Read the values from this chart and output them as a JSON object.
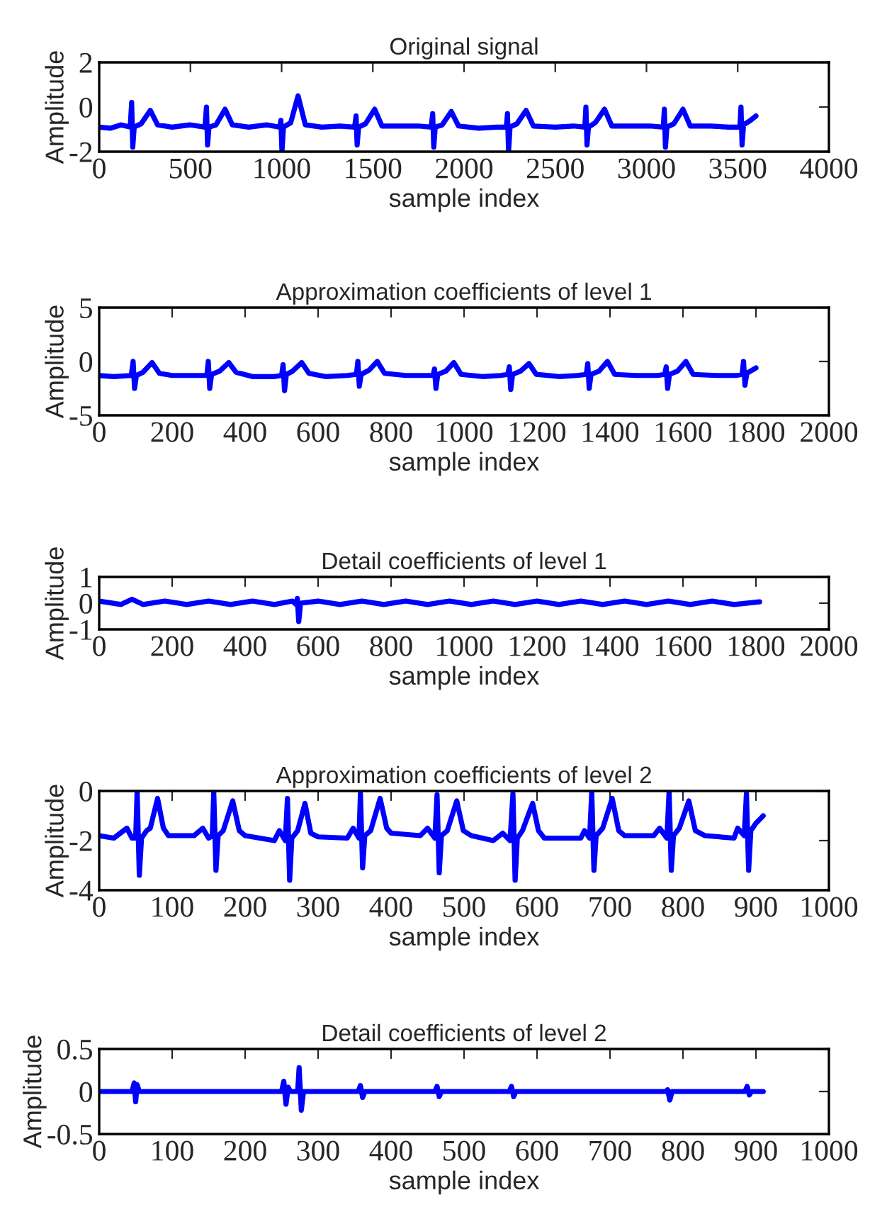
{
  "chart_data": [
    {
      "type": "line",
      "title": "Original signal",
      "xlabel": "sample index",
      "ylabel": "Amplitude",
      "xlim": [
        0,
        4000
      ],
      "ylim": [
        -2,
        2
      ],
      "xticks": [
        0,
        500,
        1000,
        1500,
        2000,
        2500,
        3000,
        3500,
        4000
      ],
      "yticks": [
        -2,
        0,
        2
      ],
      "series": [
        {
          "color": "#0000ff",
          "x": [
            0,
            60,
            120,
            170,
            178,
            184,
            192,
            230,
            280,
            320,
            400,
            500,
            580,
            588,
            594,
            602,
            640,
            690,
            730,
            820,
            920,
            990,
            996,
            1002,
            1010,
            1050,
            1090,
            1130,
            1220,
            1320,
            1400,
            1408,
            1414,
            1422,
            1460,
            1510,
            1550,
            1650,
            1750,
            1820,
            1828,
            1834,
            1842,
            1880,
            1930,
            1970,
            2080,
            2180,
            2232,
            2238,
            2244,
            2252,
            2290,
            2340,
            2380,
            2500,
            2600,
            2662,
            2668,
            2674,
            2682,
            2720,
            2770,
            2810,
            2920,
            3020,
            3092,
            3098,
            3104,
            3112,
            3150,
            3200,
            3240,
            3350,
            3450,
            3512,
            3518,
            3524,
            3532,
            3570,
            3600
          ],
          "values": [
            -0.9,
            -0.95,
            -0.8,
            -0.9,
            0.2,
            -1.8,
            -0.9,
            -0.75,
            -0.15,
            -0.8,
            -0.9,
            -0.8,
            -0.9,
            0.0,
            -1.7,
            -0.9,
            -0.8,
            -0.1,
            -0.8,
            -0.9,
            -0.8,
            -0.9,
            -0.6,
            -2.0,
            -0.9,
            -0.7,
            0.5,
            -0.8,
            -0.9,
            -0.85,
            -0.9,
            -0.4,
            -1.7,
            -0.9,
            -0.75,
            -0.1,
            -0.85,
            -0.85,
            -0.85,
            -0.9,
            -0.3,
            -1.8,
            -0.9,
            -0.8,
            -0.2,
            -0.85,
            -0.95,
            -0.9,
            -0.9,
            -0.3,
            -2.0,
            -0.9,
            -0.75,
            -0.15,
            -0.85,
            -0.9,
            -0.85,
            -0.9,
            0.0,
            -1.7,
            -0.9,
            -0.7,
            -0.1,
            -0.85,
            -0.85,
            -0.85,
            -0.9,
            -0.1,
            -1.8,
            -0.9,
            -0.75,
            -0.1,
            -0.85,
            -0.85,
            -0.9,
            -0.9,
            0.0,
            -1.7,
            -0.8,
            -0.6,
            -0.4
          ]
        }
      ]
    },
    {
      "type": "line",
      "title": "Approximation coefficients of level 1",
      "xlabel": "sample index",
      "ylabel": "Amplitude",
      "xlim": [
        0,
        2000
      ],
      "ylim": [
        -5,
        5
      ],
      "xticks": [
        0,
        200,
        400,
        600,
        800,
        1000,
        1200,
        1400,
        1600,
        1800,
        2000
      ],
      "yticks": [
        -5,
        0,
        5
      ],
      "series": [
        {
          "color": "#0000ff",
          "x": [
            0,
            40,
            88,
            93,
            97,
            102,
            120,
            145,
            165,
            200,
            250,
            295,
            299,
            303,
            308,
            330,
            355,
            375,
            420,
            480,
            500,
            504,
            508,
            513,
            530,
            555,
            575,
            620,
            680,
            705,
            709,
            713,
            718,
            740,
            762,
            782,
            840,
            880,
            915,
            919,
            923,
            928,
            950,
            972,
            992,
            1050,
            1100,
            1120,
            1124,
            1128,
            1133,
            1155,
            1178,
            1198,
            1260,
            1310,
            1335,
            1339,
            1343,
            1348,
            1370,
            1393,
            1413,
            1470,
            1530,
            1550,
            1554,
            1558,
            1563,
            1585,
            1608,
            1628,
            1690,
            1745,
            1762,
            1766,
            1770,
            1775,
            1800
          ],
          "values": [
            -1.3,
            -1.4,
            -1.3,
            0.0,
            -2.5,
            -1.3,
            -1.0,
            -0.1,
            -1.1,
            -1.3,
            -1.3,
            -1.3,
            0.0,
            -2.5,
            -1.2,
            -0.9,
            -0.1,
            -1.0,
            -1.4,
            -1.4,
            -1.3,
            -0.3,
            -2.7,
            -1.2,
            -0.9,
            -0.1,
            -1.1,
            -1.4,
            -1.3,
            -1.2,
            0.0,
            -2.3,
            -1.2,
            -0.8,
            0.0,
            -1.1,
            -1.3,
            -1.3,
            -1.3,
            -0.7,
            -2.5,
            -1.2,
            -0.9,
            -0.1,
            -1.2,
            -1.4,
            -1.3,
            -1.2,
            -0.5,
            -2.6,
            -1.2,
            -0.9,
            -0.2,
            -1.2,
            -1.4,
            -1.3,
            -1.2,
            -0.2,
            -2.5,
            -1.2,
            -0.9,
            0.0,
            -1.2,
            -1.3,
            -1.3,
            -1.2,
            -0.5,
            -2.5,
            -1.2,
            -0.9,
            0.0,
            -1.2,
            -1.3,
            -1.3,
            -1.2,
            0.0,
            -2.2,
            -1.1,
            -0.6
          ]
        }
      ]
    },
    {
      "type": "line",
      "title": "Detail coefficients of level 1",
      "xlabel": "sample index",
      "ylabel": "Amplitude",
      "xlim": [
        0,
        2000
      ],
      "ylim": [
        -1,
        1
      ],
      "xticks": [
        0,
        200,
        400,
        600,
        800,
        1000,
        1200,
        1400,
        1600,
        1800,
        2000
      ],
      "yticks": [
        -1,
        0,
        1
      ],
      "series": [
        {
          "color": "#0000ff",
          "x": [
            0,
            60,
            90,
            120,
            180,
            240,
            300,
            360,
            420,
            480,
            530,
            540,
            543,
            547,
            552,
            600,
            660,
            720,
            780,
            840,
            900,
            960,
            1020,
            1080,
            1140,
            1200,
            1260,
            1320,
            1380,
            1440,
            1500,
            1560,
            1620,
            1680,
            1740,
            1810
          ],
          "values": [
            0.08,
            -0.05,
            0.15,
            -0.05,
            0.08,
            -0.05,
            0.08,
            -0.05,
            0.08,
            -0.05,
            0.08,
            -0.05,
            0.18,
            -0.7,
            0.0,
            0.08,
            -0.05,
            0.08,
            -0.05,
            0.08,
            -0.05,
            0.08,
            -0.05,
            0.08,
            -0.05,
            0.08,
            -0.05,
            0.08,
            -0.05,
            0.08,
            -0.05,
            0.08,
            -0.05,
            0.08,
            -0.05,
            0.05
          ]
        }
      ]
    },
    {
      "type": "line",
      "title": "Approximation coefficients of level 2",
      "xlabel": "sample index",
      "ylabel": "Amplitude",
      "xlim": [
        0,
        1000
      ],
      "ylim": [
        -4,
        0
      ],
      "xticks": [
        0,
        100,
        200,
        300,
        400,
        500,
        600,
        700,
        800,
        900,
        1000
      ],
      "yticks": [
        -4,
        -2,
        0
      ],
      "series": [
        {
          "color": "#0000ff",
          "x": [
            0,
            20,
            38,
            45,
            50,
            52,
            55,
            58,
            65,
            70,
            80,
            88,
            95,
            130,
            142,
            150,
            155,
            157,
            160,
            163,
            170,
            183,
            192,
            200,
            240,
            247,
            255,
            258,
            261,
            264,
            272,
            282,
            290,
            300,
            340,
            348,
            356,
            358,
            361,
            364,
            372,
            385,
            394,
            400,
            440,
            450,
            460,
            463,
            466,
            469,
            477,
            490,
            499,
            510,
            540,
            553,
            563,
            567,
            570,
            573,
            580,
            594,
            602,
            610,
            660,
            665,
            672,
            675,
            678,
            681,
            690,
            703,
            712,
            720,
            760,
            768,
            778,
            781,
            784,
            787,
            795,
            808,
            817,
            830,
            870,
            875,
            884,
            887,
            890,
            893,
            900,
            910
          ],
          "values": [
            -1.8,
            -1.9,
            -1.5,
            -1.9,
            -1.9,
            0.0,
            -3.4,
            -1.9,
            -1.6,
            -1.5,
            -0.3,
            -1.5,
            -1.8,
            -1.8,
            -1.5,
            -1.9,
            -1.8,
            -0.05,
            -3.2,
            -1.8,
            -1.6,
            -0.4,
            -1.6,
            -1.8,
            -2.0,
            -1.6,
            -2.0,
            -0.3,
            -3.6,
            -1.9,
            -1.6,
            -0.5,
            -1.7,
            -1.85,
            -1.9,
            -1.5,
            -1.9,
            -0.1,
            -3.1,
            -1.8,
            -1.6,
            -0.3,
            -1.5,
            -1.7,
            -1.8,
            -1.5,
            -1.9,
            -0.15,
            -3.3,
            -1.8,
            -1.6,
            -0.4,
            -1.6,
            -1.8,
            -2.0,
            -1.7,
            -2.0,
            -0.1,
            -3.6,
            -1.9,
            -1.6,
            -0.5,
            -1.6,
            -1.9,
            -1.9,
            -1.6,
            -1.9,
            -0.05,
            -3.2,
            -1.8,
            -1.5,
            -0.3,
            -1.6,
            -1.8,
            -1.8,
            -1.5,
            -1.9,
            0.0,
            -3.2,
            -1.8,
            -1.5,
            -0.4,
            -1.6,
            -1.8,
            -1.9,
            -1.5,
            -1.8,
            -0.1,
            -3.2,
            -1.6,
            -1.3,
            -1.0
          ]
        }
      ]
    },
    {
      "type": "line",
      "title": "Detail coefficients of level 2",
      "xlabel": "sample index",
      "ylabel": "Amplitude",
      "xlim": [
        0,
        1000
      ],
      "ylim": [
        -0.5,
        0.5
      ],
      "xticks": [
        0,
        100,
        200,
        300,
        400,
        500,
        600,
        700,
        800,
        900,
        1000
      ],
      "yticks": [
        -0.5,
        0,
        0.5
      ],
      "series": [
        {
          "color": "#0000ff",
          "x": [
            0,
            45,
            48,
            50,
            52,
            55,
            250,
            253,
            256,
            259,
            262,
            272,
            274,
            277,
            280,
            355,
            358,
            361,
            364,
            460,
            463,
            466,
            469,
            562,
            565,
            568,
            571,
            776,
            779,
            782,
            785,
            885,
            888,
            891,
            894,
            910
          ],
          "values": [
            0,
            0,
            0.1,
            -0.12,
            0.08,
            0,
            0,
            0.12,
            -0.15,
            0.05,
            0,
            0,
            0.28,
            -0.22,
            0,
            0,
            0.07,
            -0.07,
            0,
            0,
            0.06,
            -0.06,
            0,
            0,
            0.06,
            -0.06,
            0,
            0,
            0.02,
            -0.1,
            0,
            0,
            0.06,
            -0.04,
            0,
            0
          ]
        }
      ]
    }
  ]
}
